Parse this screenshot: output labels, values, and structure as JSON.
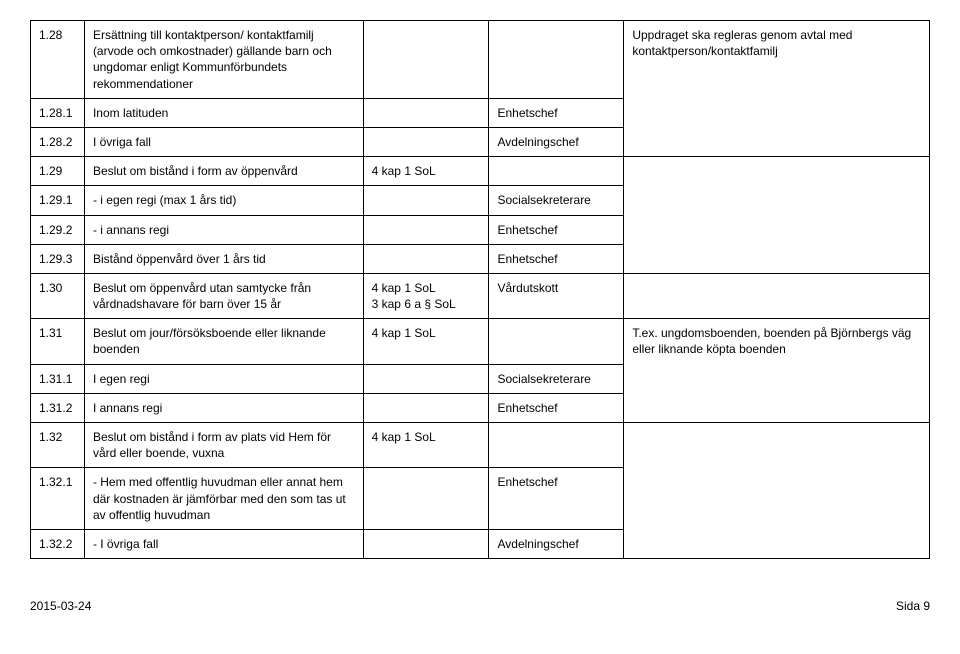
{
  "rows": [
    {
      "num": "1.28",
      "desc": "Ersättning till kontaktperson/\nkontaktfamilj (arvode och omkostnader) gällande barn och ungdomar enligt Kommunförbundets rekommendationer",
      "law": "",
      "resp": "",
      "note": "Uppdraget ska regleras genom avtal med kontaktperson/kontaktfamilj",
      "rowspan_note": 3
    },
    {
      "num": "1.28.1",
      "desc": "Inom latituden",
      "law": "",
      "resp": "Enhetschef",
      "note": ""
    },
    {
      "num": "1.28.2",
      "desc": "I övriga fall",
      "law": "",
      "resp": "Avdelningschef",
      "note": ""
    },
    {
      "num": "1.29",
      "desc": "Beslut om bistånd i form av öppenvård",
      "law": "4 kap 1 SoL",
      "resp": "",
      "note": "",
      "rowspan_note": 4
    },
    {
      "num": "1.29.1",
      "desc": "-   i egen regi (max 1 års tid)",
      "law": "",
      "resp": "Socialsekreterare",
      "note": ""
    },
    {
      "num": "1.29.2",
      "desc": "-   i annans regi",
      "law": "",
      "resp": "Enhetschef",
      "note": ""
    },
    {
      "num": "1.29.3",
      "desc": "Bistånd öppenvård över 1 års tid",
      "law": "",
      "resp": "Enhetschef",
      "note": ""
    },
    {
      "num": "1.30",
      "desc": "Beslut om öppenvård utan samtycke från vårdnadshavare för barn över 15 år",
      "law": "4 kap 1 SoL\n3 kap 6 a § SoL",
      "resp": "Vårdutskott",
      "note": ""
    },
    {
      "num": "1.31",
      "desc": "Beslut om jour/försöksboende eller liknande boenden",
      "law": "4 kap 1 SoL",
      "resp": "",
      "note": "T.ex. ungdomsboenden, boenden på Björnbergs väg eller liknande köpta boenden",
      "rowspan_note": 3
    },
    {
      "num": "1.31.1",
      "desc": "I egen regi",
      "law": "",
      "resp": "Socialsekreterare",
      "note": ""
    },
    {
      "num": "1.31.2",
      "desc": "I annans regi",
      "law": "",
      "resp": "Enhetschef",
      "note": ""
    },
    {
      "num": "1.32",
      "desc": "Beslut om bistånd i form av plats vid Hem för vård eller boende, vuxna",
      "law": "4 kap 1 SoL",
      "resp": "",
      "note": "",
      "rowspan_note": 3
    },
    {
      "num": "1.32.1",
      "desc": "- Hem med offentlig huvudman eller annat hem där kostnaden är jämförbar med den som tas ut av offentlig huvudman",
      "law": "",
      "resp": "Enhetschef",
      "note": ""
    },
    {
      "num": "1.32.2",
      "desc": "- I övriga fall",
      "law": "",
      "resp": "Avdelningschef",
      "note": ""
    }
  ],
  "footer": {
    "date": "2015-03-24",
    "page": "Sida 9"
  },
  "colors": {
    "border": "#000000",
    "bg": "#ffffff",
    "text": "#000000"
  },
  "font": {
    "family": "Arial",
    "size_pt": 9
  }
}
